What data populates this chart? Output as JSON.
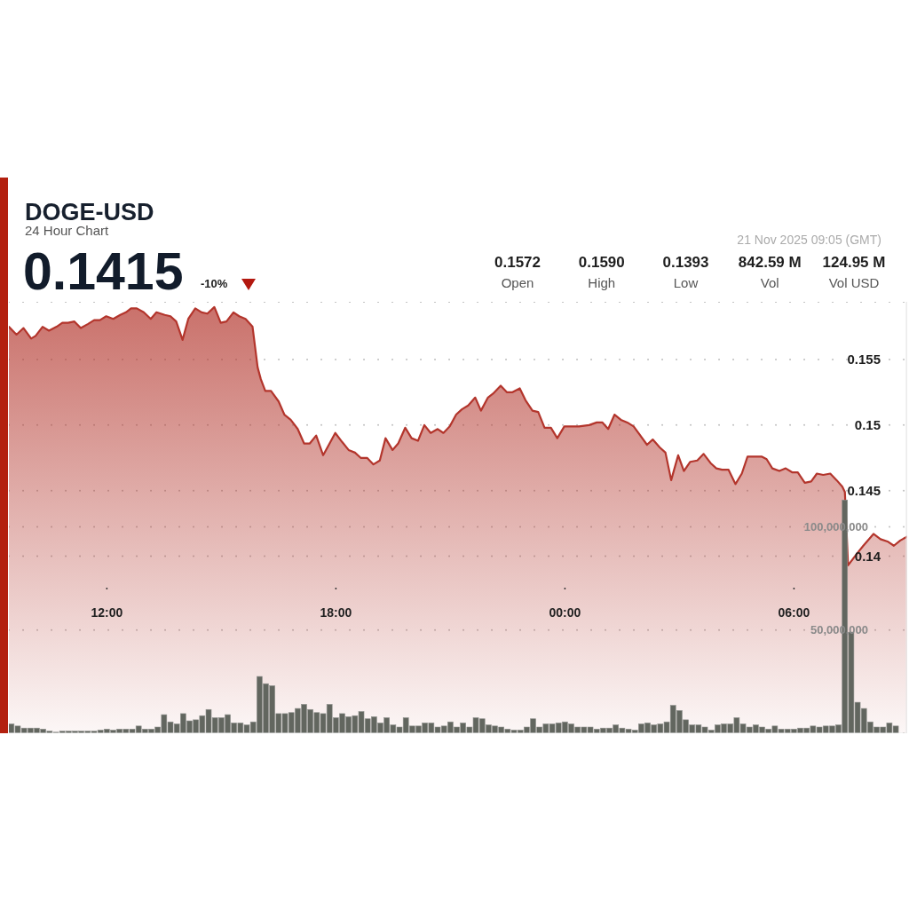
{
  "chart_data": {
    "type": "area",
    "title": "DOGE-USD",
    "subtitle": "24 Hour Chart",
    "annotations": [
      "0.1415",
      "-10%",
      "21 Nov 2025 09:05 (GMT)",
      "0.1572",
      "Open",
      "0.1590",
      "High",
      "0.1393",
      "Low",
      "842.59 M",
      "Vol",
      "124.95 M",
      "Vol USD"
    ],
    "xlim": [
      "2025-11-20T09:26",
      "2025-11-21T08:58"
    ],
    "xticks": [
      {
        "value": "2025-11-20T12:00",
        "label": "12:00"
      },
      {
        "value": "2025-11-20T18:00",
        "label": "18:00"
      },
      {
        "value": "2025-11-21T00:00",
        "label": "00:00"
      },
      {
        "value": "2025-11-21T06:00",
        "label": "06:00"
      }
    ],
    "ylim": [
      0.1265,
      0.1594
    ],
    "yticks": [
      0.14,
      0.145,
      0.15,
      0.155
    ],
    "y2lim": [
      0,
      209000000
    ],
    "y2ticks": [
      {
        "value": 50000000,
        "label": "50,000,000"
      },
      {
        "value": 100000000,
        "label": "100,000,000"
      }
    ],
    "grid": "y",
    "series": [
      {
        "color": "#b3352c",
        "x": [
          "2025-11-20T09:26",
          "2025-11-20T09:38",
          "2025-11-20T09:49",
          "2025-11-20T10:01",
          "2025-11-20T10:08",
          "2025-11-20T10:19",
          "2025-11-20T10:29",
          "2025-11-20T10:41",
          "2025-11-20T10:50",
          "2025-11-20T10:59",
          "2025-11-20T11:09",
          "2025-11-20T11:19",
          "2025-11-20T11:30",
          "2025-11-20T11:40",
          "2025-11-20T11:49",
          "2025-11-20T11:59",
          "2025-11-20T12:10",
          "2025-11-20T12:21",
          "2025-11-20T12:30",
          "2025-11-20T12:38",
          "2025-11-20T12:47",
          "2025-11-20T12:58",
          "2025-11-20T13:09",
          "2025-11-20T13:18",
          "2025-11-20T13:31",
          "2025-11-20T13:40",
          "2025-11-20T13:49",
          "2025-11-20T13:59",
          "2025-11-20T14:08",
          "2025-11-20T14:19",
          "2025-11-20T14:29",
          "2025-11-20T14:38",
          "2025-11-20T14:49",
          "2025-11-20T14:59",
          "2025-11-20T15:08",
          "2025-11-20T15:19",
          "2025-11-20T15:28",
          "2025-11-20T15:38",
          "2025-11-20T15:49",
          "2025-11-20T15:57",
          "2025-11-20T16:02",
          "2025-11-20T16:09",
          "2025-11-20T16:18",
          "2025-11-20T16:30",
          "2025-11-20T16:39",
          "2025-11-20T16:49",
          "2025-11-20T17:00",
          "2025-11-20T17:10",
          "2025-11-20T17:19",
          "2025-11-20T17:29",
          "2025-11-20T17:40",
          "2025-11-20T17:49",
          "2025-11-20T17:59",
          "2025-11-20T18:10",
          "2025-11-20T18:20",
          "2025-11-20T18:30",
          "2025-11-20T18:39",
          "2025-11-20T18:49",
          "2025-11-20T18:59",
          "2025-11-20T19:09",
          "2025-11-20T19:18",
          "2025-11-20T19:29",
          "2025-11-20T19:38",
          "2025-11-20T19:49",
          "2025-11-20T19:59",
          "2025-11-20T20:09",
          "2025-11-20T20:19",
          "2025-11-20T20:29",
          "2025-11-20T20:40",
          "2025-11-20T20:49",
          "2025-11-20T20:59",
          "2025-11-20T21:09",
          "2025-11-20T21:18",
          "2025-11-20T21:28",
          "2025-11-20T21:39",
          "2025-11-20T21:48",
          "2025-11-20T21:59",
          "2025-11-20T22:07",
          "2025-11-20T22:19",
          "2025-11-20T22:29",
          "2025-11-20T22:37",
          "2025-11-20T22:49",
          "2025-11-20T22:58",
          "2025-11-20T23:09",
          "2025-11-20T23:18",
          "2025-11-20T23:28",
          "2025-11-20T23:38",
          "2025-11-20T23:48",
          "2025-11-20T23:59",
          "2025-11-21T00:10",
          "2025-11-21T00:22",
          "2025-11-21T00:38",
          "2025-11-21T00:50",
          "2025-11-21T00:59",
          "2025-11-21T01:08",
          "2025-11-21T01:18",
          "2025-11-21T01:28",
          "2025-11-21T01:38",
          "2025-11-21T01:48",
          "2025-11-21T01:57",
          "2025-11-21T02:09",
          "2025-11-21T02:18",
          "2025-11-21T02:29",
          "2025-11-21T02:38",
          "2025-11-21T02:47",
          "2025-11-21T02:58",
          "2025-11-21T03:07",
          "2025-11-21T03:17",
          "2025-11-21T03:28",
          "2025-11-21T03:38",
          "2025-11-21T03:49",
          "2025-11-21T03:58",
          "2025-11-21T04:07",
          "2025-11-21T04:17",
          "2025-11-21T04:28",
          "2025-11-21T04:38",
          "2025-11-21T04:47",
          "2025-11-21T04:59",
          "2025-11-21T05:09",
          "2025-11-21T05:17",
          "2025-11-21T05:26",
          "2025-11-21T05:37",
          "2025-11-21T05:47",
          "2025-11-21T05:57",
          "2025-11-21T06:06",
          "2025-11-21T06:17",
          "2025-11-21T06:27",
          "2025-11-21T06:36",
          "2025-11-21T06:46",
          "2025-11-21T06:57",
          "2025-11-21T07:07",
          "2025-11-21T07:16",
          "2025-11-21T07:20",
          "2025-11-21T07:25",
          "2025-11-21T07:39",
          "2025-11-21T07:49",
          "2025-11-21T08:05",
          "2025-11-21T08:16",
          "2025-11-21T08:28",
          "2025-11-21T08:37",
          "2025-11-21T08:47",
          "2025-11-21T08:58"
        ],
        "values": [
          0.1575,
          0.1569,
          0.1574,
          0.1566,
          0.1568,
          0.1575,
          0.1572,
          0.1575,
          0.1578,
          0.1578,
          0.1579,
          0.1574,
          0.1577,
          0.158,
          0.158,
          0.1583,
          0.1581,
          0.1584,
          0.1586,
          0.1589,
          0.1589,
          0.1586,
          0.1581,
          0.1586,
          0.1584,
          0.1583,
          0.1579,
          0.1565,
          0.1581,
          0.1589,
          0.1586,
          0.1585,
          0.159,
          0.1578,
          0.1579,
          0.1586,
          0.1583,
          0.1581,
          0.1575,
          0.1544,
          0.1535,
          0.1526,
          0.1526,
          0.1518,
          0.1508,
          0.1504,
          0.1497,
          0.1486,
          0.1486,
          0.1492,
          0.1477,
          0.1485,
          0.1494,
          0.1487,
          0.1481,
          0.1479,
          0.1475,
          0.1475,
          0.147,
          0.1473,
          0.149,
          0.1481,
          0.1486,
          0.1498,
          0.149,
          0.1488,
          0.15,
          0.1494,
          0.1497,
          0.1494,
          0.1499,
          0.1508,
          0.1512,
          0.1515,
          0.1521,
          0.1511,
          0.1521,
          0.1524,
          0.153,
          0.1525,
          0.1525,
          0.1528,
          0.1519,
          0.1511,
          0.151,
          0.1498,
          0.1498,
          0.149,
          0.1499,
          0.1499,
          0.1499,
          0.15,
          0.1502,
          0.1502,
          0.1497,
          0.1508,
          0.1504,
          0.1502,
          0.1499,
          0.1493,
          0.1485,
          0.1489,
          0.1483,
          0.1479,
          0.1458,
          0.1477,
          0.1465,
          0.1472,
          0.1473,
          0.1478,
          0.1471,
          0.1467,
          0.1466,
          0.1466,
          0.1455,
          0.1463,
          0.1476,
          0.1476,
          0.1476,
          0.1474,
          0.1467,
          0.1465,
          0.1467,
          0.1464,
          0.1464,
          0.1456,
          0.1457,
          0.1463,
          0.1462,
          0.1463,
          0.1458,
          0.1453,
          0.1449,
          0.1393,
          0.1402,
          0.1408,
          0.1417,
          0.1413,
          0.1411,
          0.1408,
          0.1412,
          0.1415
        ]
      },
      {
        "type": "bar",
        "axis": "y2",
        "color": "#62665f",
        "x": [
          "2025-11-20T09:30",
          "2025-11-20T09:40",
          "2025-11-20T09:50",
          "2025-11-20T10:00",
          "2025-11-20T10:10",
          "2025-11-20T10:20",
          "2025-11-20T10:30",
          "2025-11-20T10:40",
          "2025-11-20T10:50",
          "2025-11-20T11:00",
          "2025-11-20T11:10",
          "2025-11-20T11:20",
          "2025-11-20T11:30",
          "2025-11-20T11:40",
          "2025-11-20T11:50",
          "2025-11-20T12:00",
          "2025-11-20T12:10",
          "2025-11-20T12:20",
          "2025-11-20T12:30",
          "2025-11-20T12:40",
          "2025-11-20T12:50",
          "2025-11-20T13:00",
          "2025-11-20T13:10",
          "2025-11-20T13:20",
          "2025-11-20T13:30",
          "2025-11-20T13:40",
          "2025-11-20T13:50",
          "2025-11-20T14:00",
          "2025-11-20T14:10",
          "2025-11-20T14:20",
          "2025-11-20T14:30",
          "2025-11-20T14:40",
          "2025-11-20T14:50",
          "2025-11-20T15:00",
          "2025-11-20T15:10",
          "2025-11-20T15:20",
          "2025-11-20T15:30",
          "2025-11-20T15:40",
          "2025-11-20T15:50",
          "2025-11-20T16:00",
          "2025-11-20T16:10",
          "2025-11-20T16:20",
          "2025-11-20T16:30",
          "2025-11-20T16:40",
          "2025-11-20T16:50",
          "2025-11-20T17:00",
          "2025-11-20T17:10",
          "2025-11-20T17:20",
          "2025-11-20T17:30",
          "2025-11-20T17:40",
          "2025-11-20T17:50",
          "2025-11-20T18:00",
          "2025-11-20T18:10",
          "2025-11-20T18:20",
          "2025-11-20T18:30",
          "2025-11-20T18:40",
          "2025-11-20T18:50",
          "2025-11-20T19:00",
          "2025-11-20T19:10",
          "2025-11-20T19:20",
          "2025-11-20T19:30",
          "2025-11-20T19:40",
          "2025-11-20T19:50",
          "2025-11-20T20:00",
          "2025-11-20T20:10",
          "2025-11-20T20:20",
          "2025-11-20T20:30",
          "2025-11-20T20:40",
          "2025-11-20T20:50",
          "2025-11-20T21:00",
          "2025-11-20T21:10",
          "2025-11-20T21:20",
          "2025-11-20T21:30",
          "2025-11-20T21:40",
          "2025-11-20T21:50",
          "2025-11-20T22:00",
          "2025-11-20T22:10",
          "2025-11-20T22:20",
          "2025-11-20T22:30",
          "2025-11-20T22:40",
          "2025-11-20T22:50",
          "2025-11-20T23:00",
          "2025-11-20T23:10",
          "2025-11-20T23:20",
          "2025-11-20T23:30",
          "2025-11-20T23:40",
          "2025-11-20T23:50",
          "2025-11-21T00:00",
          "2025-11-21T00:10",
          "2025-11-21T00:20",
          "2025-11-21T00:30",
          "2025-11-21T00:40",
          "2025-11-21T00:50",
          "2025-11-21T01:00",
          "2025-11-21T01:10",
          "2025-11-21T01:20",
          "2025-11-21T01:30",
          "2025-11-21T01:40",
          "2025-11-21T01:50",
          "2025-11-21T02:00",
          "2025-11-21T02:10",
          "2025-11-21T02:20",
          "2025-11-21T02:30",
          "2025-11-21T02:40",
          "2025-11-21T02:50",
          "2025-11-21T03:00",
          "2025-11-21T03:10",
          "2025-11-21T03:20",
          "2025-11-21T03:30",
          "2025-11-21T03:40",
          "2025-11-21T03:50",
          "2025-11-21T04:00",
          "2025-11-21T04:10",
          "2025-11-21T04:20",
          "2025-11-21T04:30",
          "2025-11-21T04:40",
          "2025-11-21T04:50",
          "2025-11-21T05:00",
          "2025-11-21T05:10",
          "2025-11-21T05:20",
          "2025-11-21T05:30",
          "2025-11-21T05:40",
          "2025-11-21T05:50",
          "2025-11-21T06:00",
          "2025-11-21T06:10",
          "2025-11-21T06:20",
          "2025-11-21T06:30",
          "2025-11-21T06:40",
          "2025-11-21T06:50",
          "2025-11-21T07:00",
          "2025-11-21T07:10",
          "2025-11-21T07:20",
          "2025-11-21T07:30",
          "2025-11-21T07:40",
          "2025-11-21T07:50",
          "2025-11-21T08:00",
          "2025-11-21T08:10",
          "2025-11-21T08:20",
          "2025-11-21T08:30",
          "2025-11-21T08:40"
        ],
        "values": [
          4500000,
          3500000,
          2500000,
          2500000,
          2500000,
          2000000,
          1000000,
          500000,
          1000000,
          1000000,
          1000000,
          1000000,
          1000000,
          1000000,
          1500000,
          2000000,
          1500000,
          2000000,
          2000000,
          2000000,
          3500000,
          2000000,
          2000000,
          3000000,
          9000000,
          5500000,
          4500000,
          9500000,
          6000000,
          6500000,
          8500000,
          11500000,
          7500000,
          7500000,
          9000000,
          5000000,
          5000000,
          4000000,
          5500000,
          27500000,
          24000000,
          23000000,
          9500000,
          9500000,
          10000000,
          12000000,
          14000000,
          11500000,
          10000000,
          9500000,
          14000000,
          7500000,
          9500000,
          8000000,
          8500000,
          10500000,
          7000000,
          8000000,
          5000000,
          7500000,
          4000000,
          3000000,
          7500000,
          3500000,
          3500000,
          5000000,
          5000000,
          3000000,
          3500000,
          5500000,
          3000000,
          5000000,
          3000000,
          7500000,
          7000000,
          4000000,
          3500000,
          3000000,
          2000000,
          1500000,
          1500000,
          3000000,
          7000000,
          3000000,
          4500000,
          4500000,
          5000000,
          5500000,
          4500000,
          3000000,
          3000000,
          3000000,
          2000000,
          2500000,
          2500000,
          4000000,
          2500000,
          2000000,
          1500000,
          4500000,
          5000000,
          4000000,
          4500000,
          5500000,
          13500000,
          11000000,
          6500000,
          4000000,
          4000000,
          3000000,
          1500000,
          4000000,
          4500000,
          4500000,
          7500000,
          4500000,
          3000000,
          4000000,
          3000000,
          2000000,
          3500000,
          2000000,
          2000000,
          2000000,
          2500000,
          2500000,
          3500000,
          3000000,
          3500000,
          3500000,
          4000000,
          113000000,
          49000000,
          15000000,
          12000000,
          5500000,
          3000000,
          3000000,
          5000000,
          3500000
        ]
      }
    ]
  }
}
